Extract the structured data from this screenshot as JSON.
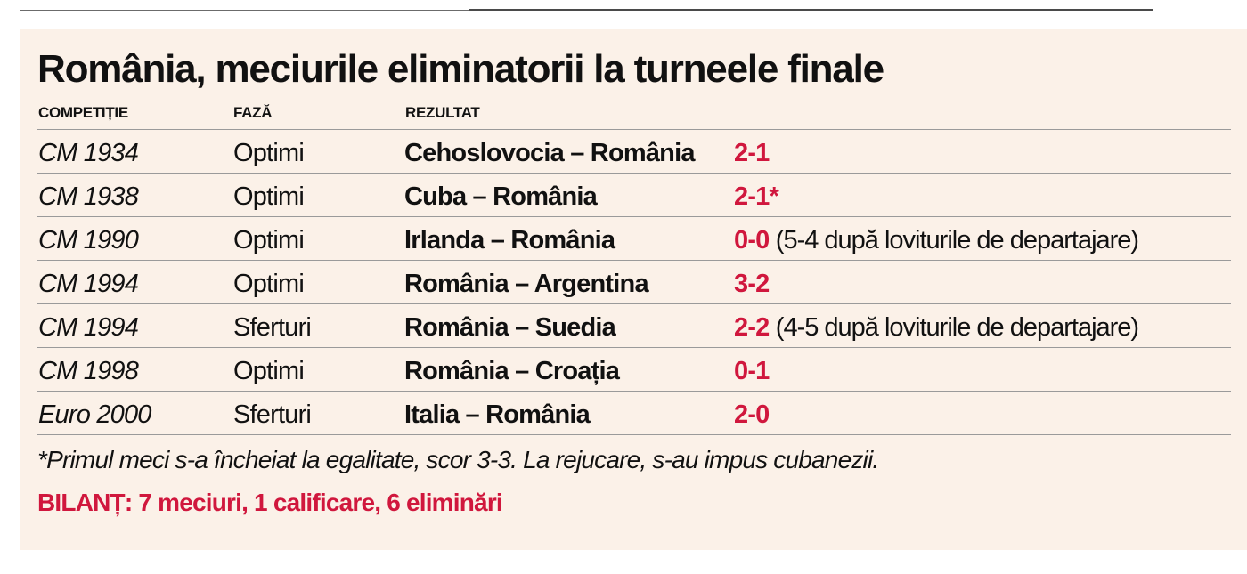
{
  "title": "România, meciurile eliminatorii la turneele finale",
  "columns": {
    "competition": "COMPETIȚIE",
    "phase": "FAZĂ",
    "result": "REZULTAT"
  },
  "rows": [
    {
      "competition": "CM 1934",
      "phase": "Optimi",
      "match": "Cehoslovocia – România",
      "score": "2-1",
      "note": ""
    },
    {
      "competition": "CM 1938",
      "phase": "Optimi",
      "match": "Cuba – România",
      "score": "2-1*",
      "note": ""
    },
    {
      "competition": "CM 1990",
      "phase": "Optimi",
      "match": "Irlanda – România",
      "score": "0-0",
      "note": "(5-4 după loviturile de departajare)"
    },
    {
      "competition": "CM 1994",
      "phase": "Optimi",
      "match": "România – Argentina",
      "score": "3-2",
      "note": ""
    },
    {
      "competition": "CM 1994",
      "phase": "Sferturi",
      "match": "România – Suedia",
      "score": "2-2",
      "note": "(4-5 după loviturile de departajare)"
    },
    {
      "competition": "CM 1998",
      "phase": "Optimi",
      "match": "România – Croația",
      "score": "0-1",
      "note": ""
    },
    {
      "competition": "Euro 2000",
      "phase": "Sferturi",
      "match": "Italia – România",
      "score": "2-0",
      "note": ""
    }
  ],
  "footnote": "*Primul meci s-a încheiat la egalitate, scor 3-3. La rejucare, s-au impus cubanezii.",
  "summary": "BILANȚ: 7 meciuri, 1 calificare, 6 eliminări",
  "colors": {
    "accent": "#d0173d",
    "panel_background": "#fbf1e8",
    "text": "#111111"
  }
}
